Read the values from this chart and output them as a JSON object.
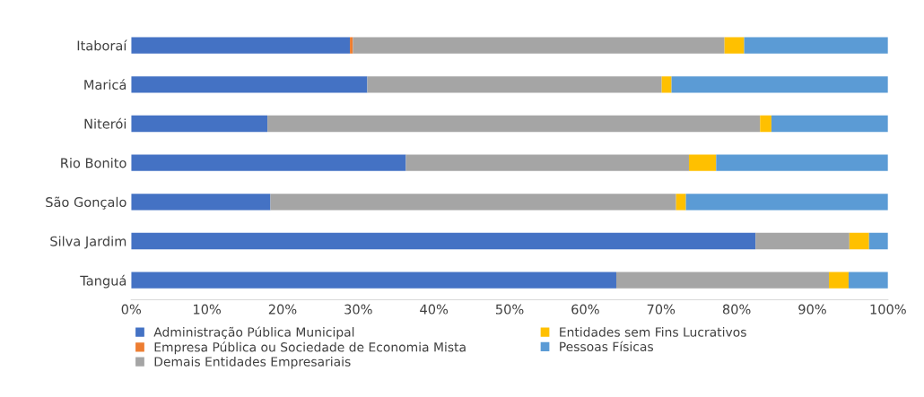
{
  "chart_data": {
    "type": "bar",
    "orientation": "horizontal",
    "stacked": true,
    "categories": [
      "Itaboraí",
      "Maricá",
      "Niterói",
      "Rio Bonito",
      "São Gonçalo",
      "Silva Jardim",
      "Tanguá"
    ],
    "series": [
      {
        "name": "Administração Pública Municipal",
        "color": "#4472c4",
        "values": [
          28.9,
          31.2,
          18.0,
          36.3,
          18.4,
          82.5,
          64.1
        ]
      },
      {
        "name": "Empresa Pública ou Sociedade de Economia Mista",
        "color": "#ed7d31",
        "values": [
          0.4,
          0,
          0,
          0,
          0,
          0,
          0
        ]
      },
      {
        "name": "Demais Entidades Empresariais",
        "color": "#a5a5a5",
        "values": [
          49.1,
          38.9,
          65.1,
          37.4,
          53.6,
          12.4,
          28.1
        ]
      },
      {
        "name": "Entidades sem Fins Lucrativos",
        "color": "#ffc000",
        "values": [
          2.6,
          1.3,
          1.5,
          3.6,
          1.3,
          2.6,
          2.6
        ]
      },
      {
        "name": "Pessoas Físicas",
        "color": "#5b9bd5",
        "values": [
          19.0,
          28.6,
          15.4,
          22.7,
          26.7,
          2.5,
          5.2
        ]
      }
    ],
    "xlim": [
      0,
      100
    ],
    "xticks": [
      {
        "value": 0,
        "label": "0%"
      },
      {
        "value": 10,
        "label": "10%"
      },
      {
        "value": 20,
        "label": "20%"
      },
      {
        "value": 30,
        "label": "30%"
      },
      {
        "value": 40,
        "label": "40%"
      },
      {
        "value": 50,
        "label": "50%"
      },
      {
        "value": 60,
        "label": "60%"
      },
      {
        "value": 70,
        "label": "70%"
      },
      {
        "value": 80,
        "label": "80%"
      },
      {
        "value": 90,
        "label": "90%"
      },
      {
        "value": 100,
        "label": "100%"
      }
    ],
    "grid": false,
    "legend": "bottom"
  }
}
